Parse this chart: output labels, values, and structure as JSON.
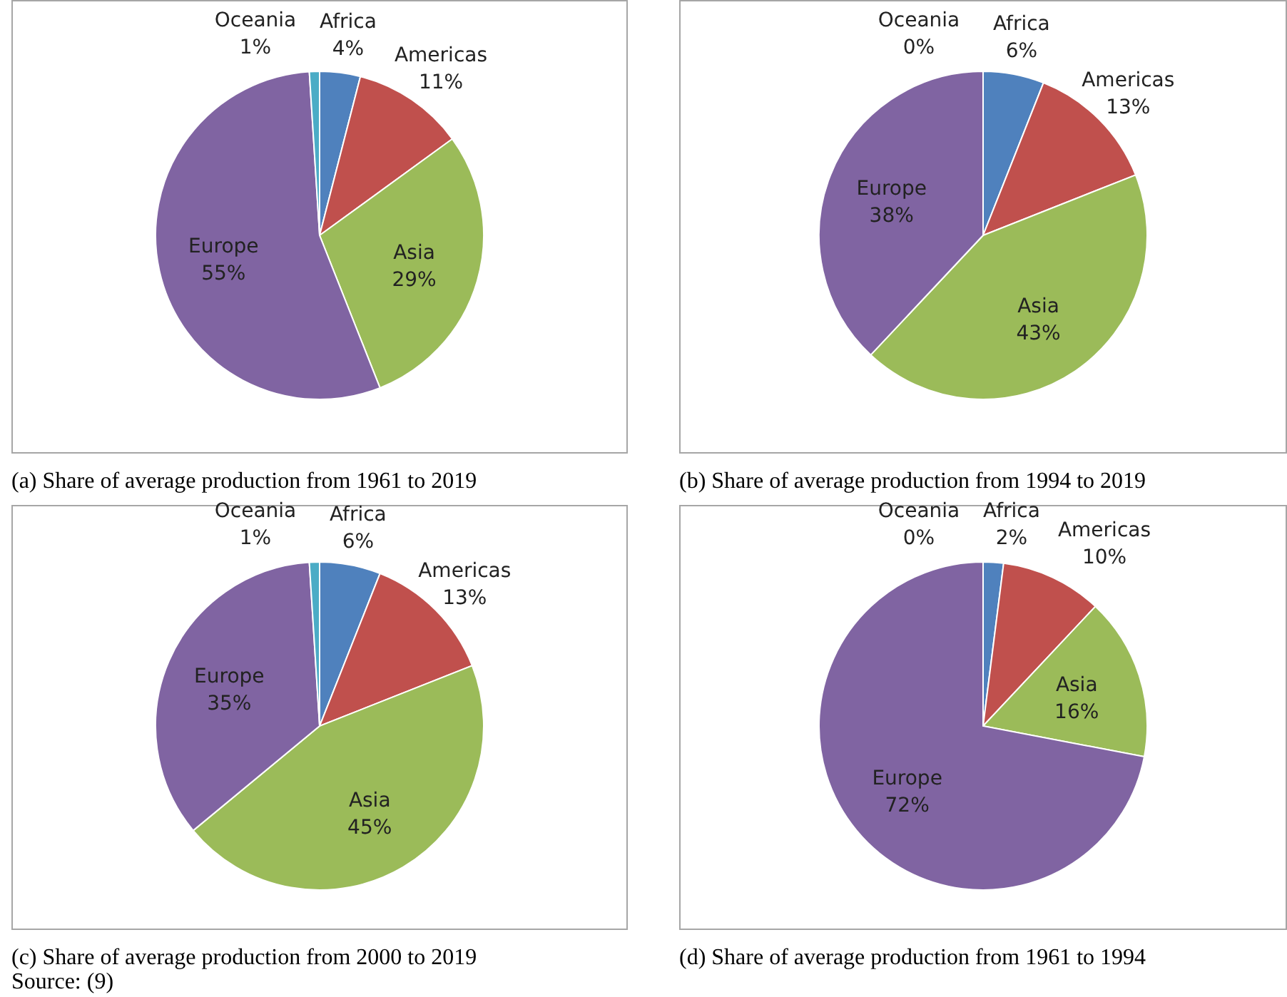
{
  "chart_data": [
    {
      "type": "pie",
      "title": "(a) Share of average production from 1961 to 2019",
      "categories": [
        "Africa",
        "Americas",
        "Asia",
        "Europe",
        "Oceania"
      ],
      "values": [
        4,
        11,
        29,
        55,
        1
      ],
      "value_labels": [
        "4%",
        "11%",
        "29%",
        "55%",
        "1%"
      ],
      "colors": [
        "#4f81bd",
        "#c0504d",
        "#9bbb59",
        "#8064a2",
        "#4bacc6"
      ]
    },
    {
      "type": "pie",
      "title": "(b) Share of average production from 1994 to 2019",
      "categories": [
        "Africa",
        "Americas",
        "Asia",
        "Europe",
        "Oceania"
      ],
      "values": [
        6,
        13,
        43,
        38,
        0
      ],
      "value_labels": [
        "6%",
        "13%",
        "43%",
        "38%",
        "0%"
      ],
      "colors": [
        "#4f81bd",
        "#c0504d",
        "#9bbb59",
        "#8064a2",
        "#4bacc6"
      ]
    },
    {
      "type": "pie",
      "title": "(c) Share of average production from 2000 to 2019",
      "categories": [
        "Africa",
        "Americas",
        "Asia",
        "Europe",
        "Oceania"
      ],
      "values": [
        6,
        13,
        45,
        35,
        1
      ],
      "value_labels": [
        "6%",
        "13%",
        "45%",
        "35%",
        "1%"
      ],
      "colors": [
        "#4f81bd",
        "#c0504d",
        "#9bbb59",
        "#8064a2",
        "#4bacc6"
      ],
      "annotations": [
        "Source: (9)"
      ]
    },
    {
      "type": "pie",
      "title": "(d) Share of average production from 1961 to 1994",
      "categories": [
        "Africa",
        "Americas",
        "Asia",
        "Europe",
        "Oceania"
      ],
      "values": [
        2,
        10,
        16,
        72,
        0
      ],
      "value_labels": [
        "2%",
        "10%",
        "16%",
        "72%",
        "0%"
      ],
      "colors": [
        "#4f81bd",
        "#c0504d",
        "#9bbb59",
        "#8064a2",
        "#4bacc6"
      ]
    }
  ]
}
